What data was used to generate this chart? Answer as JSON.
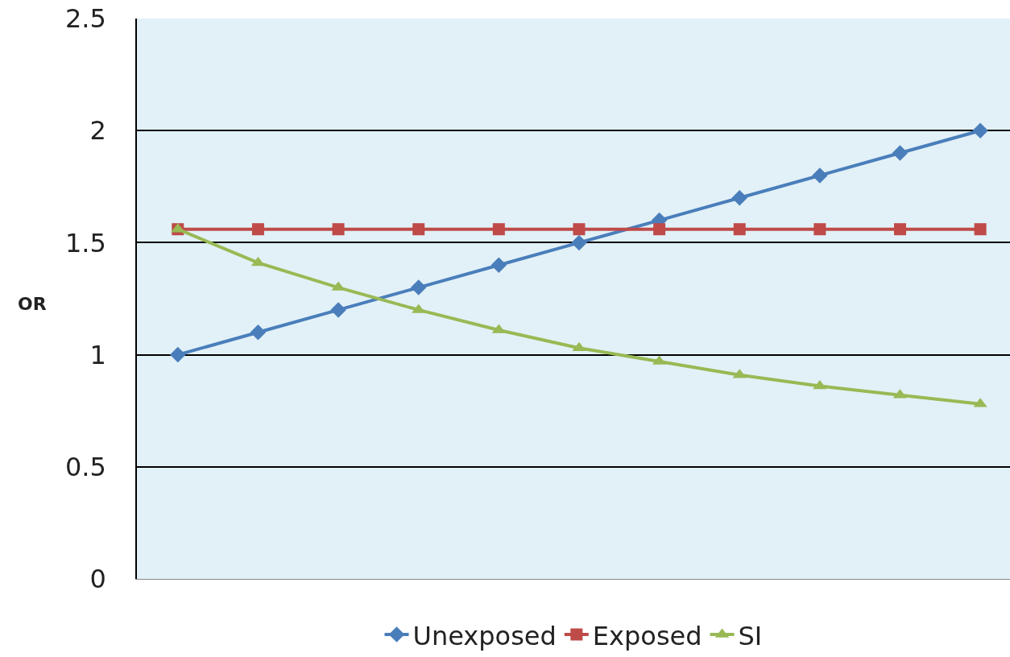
{
  "chart_data": {
    "type": "line",
    "ylabel": "OR",
    "categories": [
      null,
      null,
      null,
      null,
      null,
      null,
      null,
      null,
      null,
      null,
      null
    ],
    "series": [
      {
        "name": "Unexposed",
        "color": "#4a7ebb",
        "marker": "diamond",
        "values": [
          1.0,
          1.1,
          1.2,
          1.3,
          1.4,
          1.5,
          1.6,
          1.7,
          1.8,
          1.9,
          2.0
        ]
      },
      {
        "name": "Exposed",
        "color": "#be4b48",
        "marker": "square",
        "values": [
          1.56,
          1.56,
          1.56,
          1.56,
          1.56,
          1.56,
          1.56,
          1.56,
          1.56,
          1.56,
          1.56
        ]
      },
      {
        "name": "SI",
        "color": "#98b954",
        "marker": "triangle",
        "values": [
          1.56,
          1.41,
          1.3,
          1.2,
          1.11,
          1.03,
          0.97,
          0.91,
          0.86,
          0.82,
          0.78
        ]
      }
    ],
    "ylim": [
      0,
      2.5
    ],
    "yticks": [
      0,
      0.5,
      1,
      1.5,
      2,
      2.5
    ],
    "grid": "y",
    "legend": "bottom",
    "tick_labels": "y",
    "line_style": "solid"
  }
}
